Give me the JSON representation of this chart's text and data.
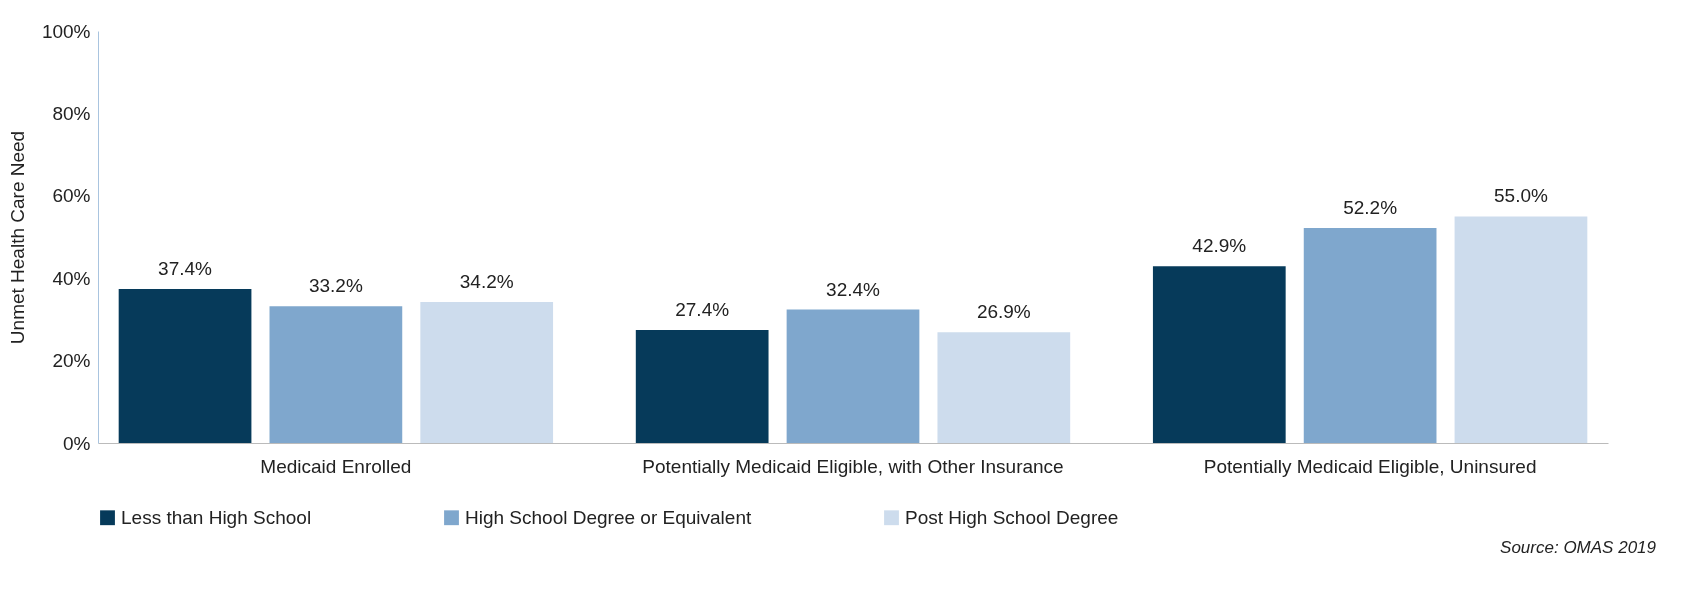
{
  "chart_data": {
    "type": "bar",
    "ylabel": "Unmet Health Care Need",
    "categories": [
      "Medicaid Enrolled",
      "Potentially Medicaid Eligible, with Other Insurance",
      "Potentially Medicaid Eligible, Uninsured"
    ],
    "series": [
      {
        "name": "Less than High School",
        "color": "#063a5a",
        "values": [
          37.4,
          27.4,
          42.9
        ],
        "value_labels": [
          "37.4%",
          "27.4%",
          "42.9%"
        ]
      },
      {
        "name": "High School Degree or Equivalent",
        "color": "#7fa7cd",
        "values": [
          33.2,
          32.4,
          52.2
        ],
        "value_labels": [
          "33.2%",
          "32.4%",
          "52.2%"
        ]
      },
      {
        "name": "Post High School Degree",
        "color": "#cddced",
        "values": [
          34.2,
          26.9,
          55.0
        ],
        "value_labels": [
          "34.2%",
          "26.9%",
          "55.0%"
        ]
      }
    ],
    "ylim": [
      0,
      100
    ],
    "yticks": [
      {
        "value": 0,
        "label": "0%"
      },
      {
        "value": 20,
        "label": "20%"
      },
      {
        "value": 40,
        "label": "40%"
      },
      {
        "value": 60,
        "label": "60%"
      },
      {
        "value": 80,
        "label": "80%"
      },
      {
        "value": 100,
        "label": "100%"
      }
    ],
    "grid": false,
    "legend": "bottom",
    "annotations": [
      "Source: OMAS 2019"
    ]
  }
}
